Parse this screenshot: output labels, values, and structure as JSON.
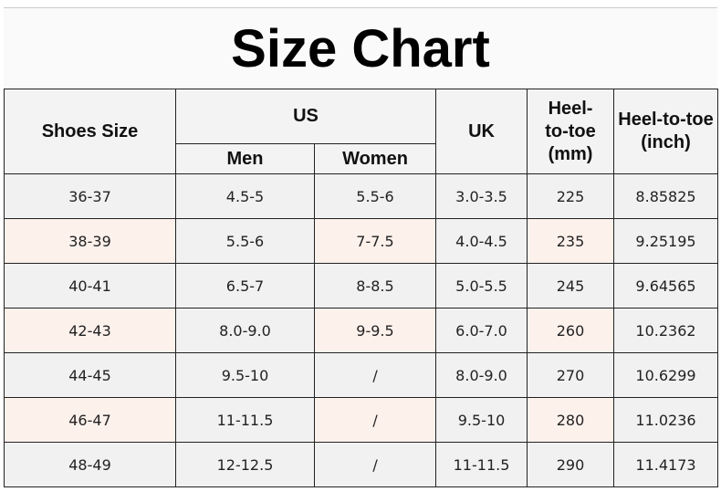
{
  "title": "Size Chart",
  "headers": {
    "shoes_size": "Shoes Size",
    "us": "US",
    "men": "Men",
    "women": "Women",
    "uk": "UK",
    "heel_mm": "Heel-to-toe (mm)",
    "heel_inch": "Heel-to-toe (inch)"
  },
  "rows": [
    [
      "36-37",
      "4.5-5",
      "5.5-6",
      "3.0-3.5",
      "225",
      "8.85825"
    ],
    [
      "38-39",
      "5.5-6",
      "7-7.5",
      "4.0-4.5",
      "235",
      "9.25195"
    ],
    [
      "40-41",
      "6.5-7",
      "8-8.5",
      "5.0-5.5",
      "245",
      "9.64565"
    ],
    [
      "42-43",
      "8.0-9.0",
      "9-9.5",
      "6.0-7.0",
      "260",
      "10.2362"
    ],
    [
      "44-45",
      "9.5-10",
      "/",
      "8.0-9.0",
      "270",
      "10.6299"
    ],
    [
      "46-47",
      "11-11.5",
      "/",
      "9.5-10",
      "280",
      "11.0236"
    ],
    [
      "48-49",
      "12-12.5",
      "/",
      "11-11.5",
      "290",
      "11.4173"
    ]
  ],
  "colors": {
    "alt_row": "#fdf1ec",
    "row": "#f1f1f1",
    "border": "#222222"
  }
}
